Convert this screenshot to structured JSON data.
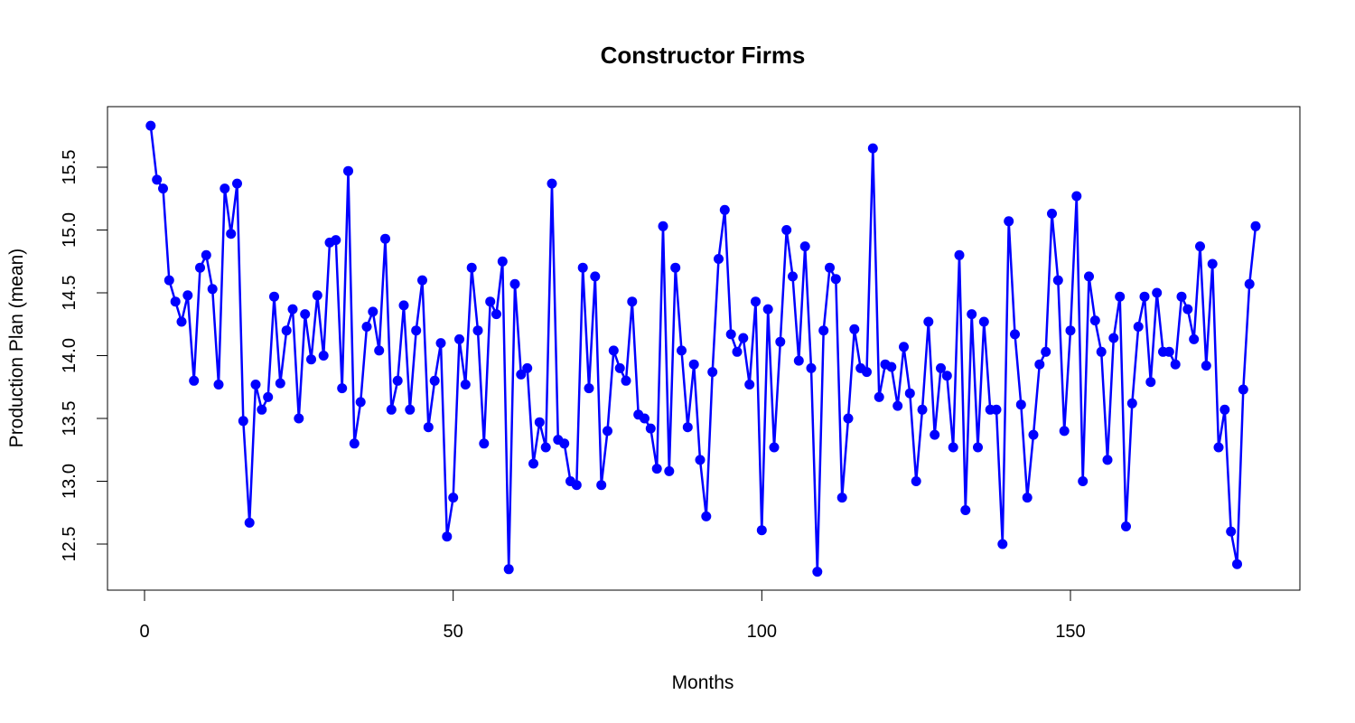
{
  "chart_data": {
    "type": "line",
    "title": "Constructor Firms",
    "xlabel": "Months",
    "ylabel": "Production Plan (mean)",
    "xlim": [
      0,
      180
    ],
    "ylim": [
      12.3,
      15.8
    ],
    "x_ticks": [
      0,
      50,
      100,
      150
    ],
    "y_ticks": [
      12.5,
      13.0,
      13.5,
      14.0,
      14.5,
      15.0,
      15.5
    ],
    "grid": false,
    "legend": "none",
    "series_color": "#0000ff",
    "series": [
      {
        "x": [
          1,
          2,
          3,
          4,
          5,
          6,
          7,
          8,
          9,
          10,
          11,
          12,
          13,
          14,
          15,
          16,
          17,
          18,
          19,
          20,
          21,
          22,
          23,
          24,
          25,
          26,
          27,
          28,
          29,
          30,
          31,
          32,
          33,
          34,
          35,
          36,
          37,
          38,
          39,
          40,
          41,
          42,
          43,
          44,
          45,
          46,
          47,
          48,
          49,
          50,
          51,
          52,
          53,
          54,
          55,
          56,
          57,
          58,
          59,
          60,
          61,
          62,
          63,
          64,
          65,
          66,
          67,
          68,
          69,
          70,
          71,
          72,
          73,
          74,
          75,
          76,
          77,
          78,
          79,
          80,
          81,
          82,
          83,
          84,
          85,
          86,
          87,
          88,
          89,
          90,
          91,
          92,
          93,
          94,
          95,
          96,
          97,
          98,
          99,
          100,
          101,
          102,
          103,
          104,
          105,
          106,
          107,
          108,
          109,
          110,
          111,
          112,
          113,
          114,
          115,
          116,
          117,
          118,
          119,
          120,
          121,
          122,
          123,
          124,
          125,
          126,
          127,
          128,
          129,
          130,
          131,
          132,
          133,
          134,
          135,
          136,
          137,
          138,
          139,
          140,
          141,
          142,
          143,
          144,
          145,
          146,
          147,
          148,
          149,
          150,
          151,
          152,
          153,
          154,
          155,
          156,
          157,
          158,
          159,
          160,
          161,
          162,
          163,
          164,
          165,
          166,
          167,
          168,
          169,
          170,
          171,
          172,
          173,
          174,
          175,
          176,
          177,
          178,
          179,
          180
        ],
        "values": [
          15.83,
          15.4,
          15.33,
          14.6,
          14.43,
          14.27,
          14.48,
          13.8,
          14.7,
          14.8,
          14.53,
          13.77,
          15.33,
          14.97,
          15.37,
          13.48,
          12.67,
          13.77,
          13.57,
          13.67,
          14.47,
          13.78,
          14.2,
          14.37,
          13.5,
          14.33,
          13.97,
          14.48,
          14.0,
          14.9,
          14.92,
          13.74,
          15.47,
          13.3,
          13.63,
          14.23,
          14.35,
          14.04,
          14.93,
          13.57,
          13.8,
          14.4,
          13.57,
          14.2,
          14.6,
          13.43,
          13.8,
          14.1,
          12.56,
          12.87,
          14.13,
          13.77,
          14.7,
          14.2,
          13.3,
          14.43,
          14.33,
          14.75,
          12.3,
          14.57,
          13.85,
          13.9,
          13.14,
          13.47,
          13.27,
          15.37,
          13.33,
          13.3,
          13.0,
          12.97,
          14.7,
          13.74,
          14.63,
          12.97,
          13.4,
          14.04,
          13.9,
          13.8,
          14.43,
          13.53,
          13.5,
          13.42,
          13.1,
          15.03,
          13.08,
          14.7,
          14.04,
          13.43,
          13.93,
          13.17,
          12.72,
          13.87,
          14.77,
          15.16,
          14.17,
          14.03,
          14.14,
          13.77,
          14.43,
          12.61,
          14.37,
          13.27,
          14.11,
          15.0,
          14.63,
          13.96,
          14.87,
          13.9,
          12.28,
          14.2,
          14.7,
          14.61,
          12.87,
          13.5,
          14.21,
          13.9,
          13.87,
          15.65,
          13.67,
          13.93,
          13.91,
          13.6,
          14.07,
          13.7,
          13.0,
          13.57,
          14.27,
          13.37,
          13.9,
          13.84,
          13.27,
          14.8,
          12.77,
          14.33,
          13.27,
          14.27,
          13.57,
          13.57,
          12.5,
          15.07,
          14.17,
          13.61,
          12.87,
          13.37,
          13.93,
          14.03,
          15.13,
          14.6,
          13.4,
          14.2,
          15.27,
          13.0,
          14.63,
          14.28,
          14.03,
          13.17,
          14.14,
          14.47,
          12.64,
          13.62,
          14.23,
          14.47,
          13.79,
          14.5,
          14.03,
          14.03,
          13.93,
          14.47,
          14.37,
          14.13,
          14.87,
          13.92,
          14.73,
          13.27,
          13.57,
          12.6,
          12.34,
          13.73,
          14.57,
          15.03
        ]
      }
    ]
  }
}
